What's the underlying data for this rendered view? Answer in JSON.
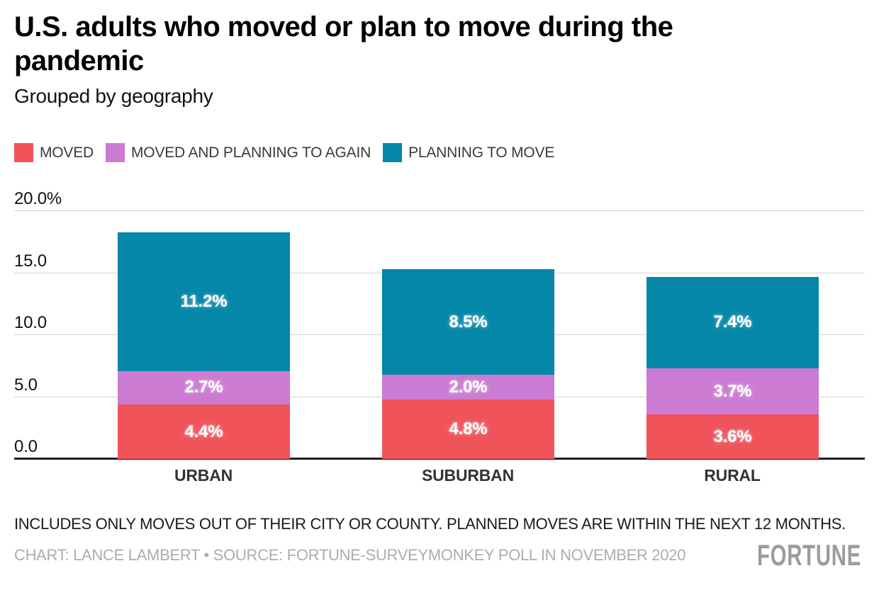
{
  "chart_data": {
    "type": "bar",
    "stacked": true,
    "title": "U.S. adults who moved or plan to move during the pandemic",
    "subtitle": "Grouped by geography",
    "categories": [
      "URBAN",
      "SUBURBAN",
      "RURAL"
    ],
    "series": [
      {
        "name": "MOVED",
        "color": "#F1535B",
        "values": [
          4.4,
          4.8,
          3.6
        ]
      },
      {
        "name": "MOVED AND PLANNING TO AGAIN",
        "color": "#CC7BD2",
        "values": [
          2.7,
          2.0,
          3.7
        ]
      },
      {
        "name": "PLANNING TO MOVE",
        "color": "#0487A9",
        "values": [
          11.2,
          8.5,
          7.4
        ]
      }
    ],
    "value_suffix": "%",
    "y_axis": {
      "range": [
        0,
        20
      ],
      "grid": true,
      "ticks": [
        {
          "value": 0,
          "label": "0.0"
        },
        {
          "value": 5,
          "label": "5.0"
        },
        {
          "value": 10,
          "label": "10.0"
        },
        {
          "value": 15,
          "label": "15.0"
        },
        {
          "value": 20,
          "label": "20.0%"
        }
      ]
    },
    "legend_position": "top"
  },
  "footer": {
    "note": "INCLUDES ONLY MOVES OUT OF THEIR CITY OR COUNTY. PLANNED MOVES ARE WITHIN THE NEXT 12 MONTHS.",
    "credit": "CHART: LANCE LAMBERT • SOURCE: FORTUNE-SURVEYMONKEY POLL IN NOVEMBER 2020",
    "logo": "FORTUNE"
  },
  "colors": {
    "grid": "#D3D3D3",
    "axis": "#1F1F1F",
    "moved": "#F1535B",
    "moved_and_planning_to_again": "#CC7BD2",
    "planning_to_move": "#0487A9",
    "credit_text": "#ADADAD",
    "logo": "#9C9C9C"
  }
}
